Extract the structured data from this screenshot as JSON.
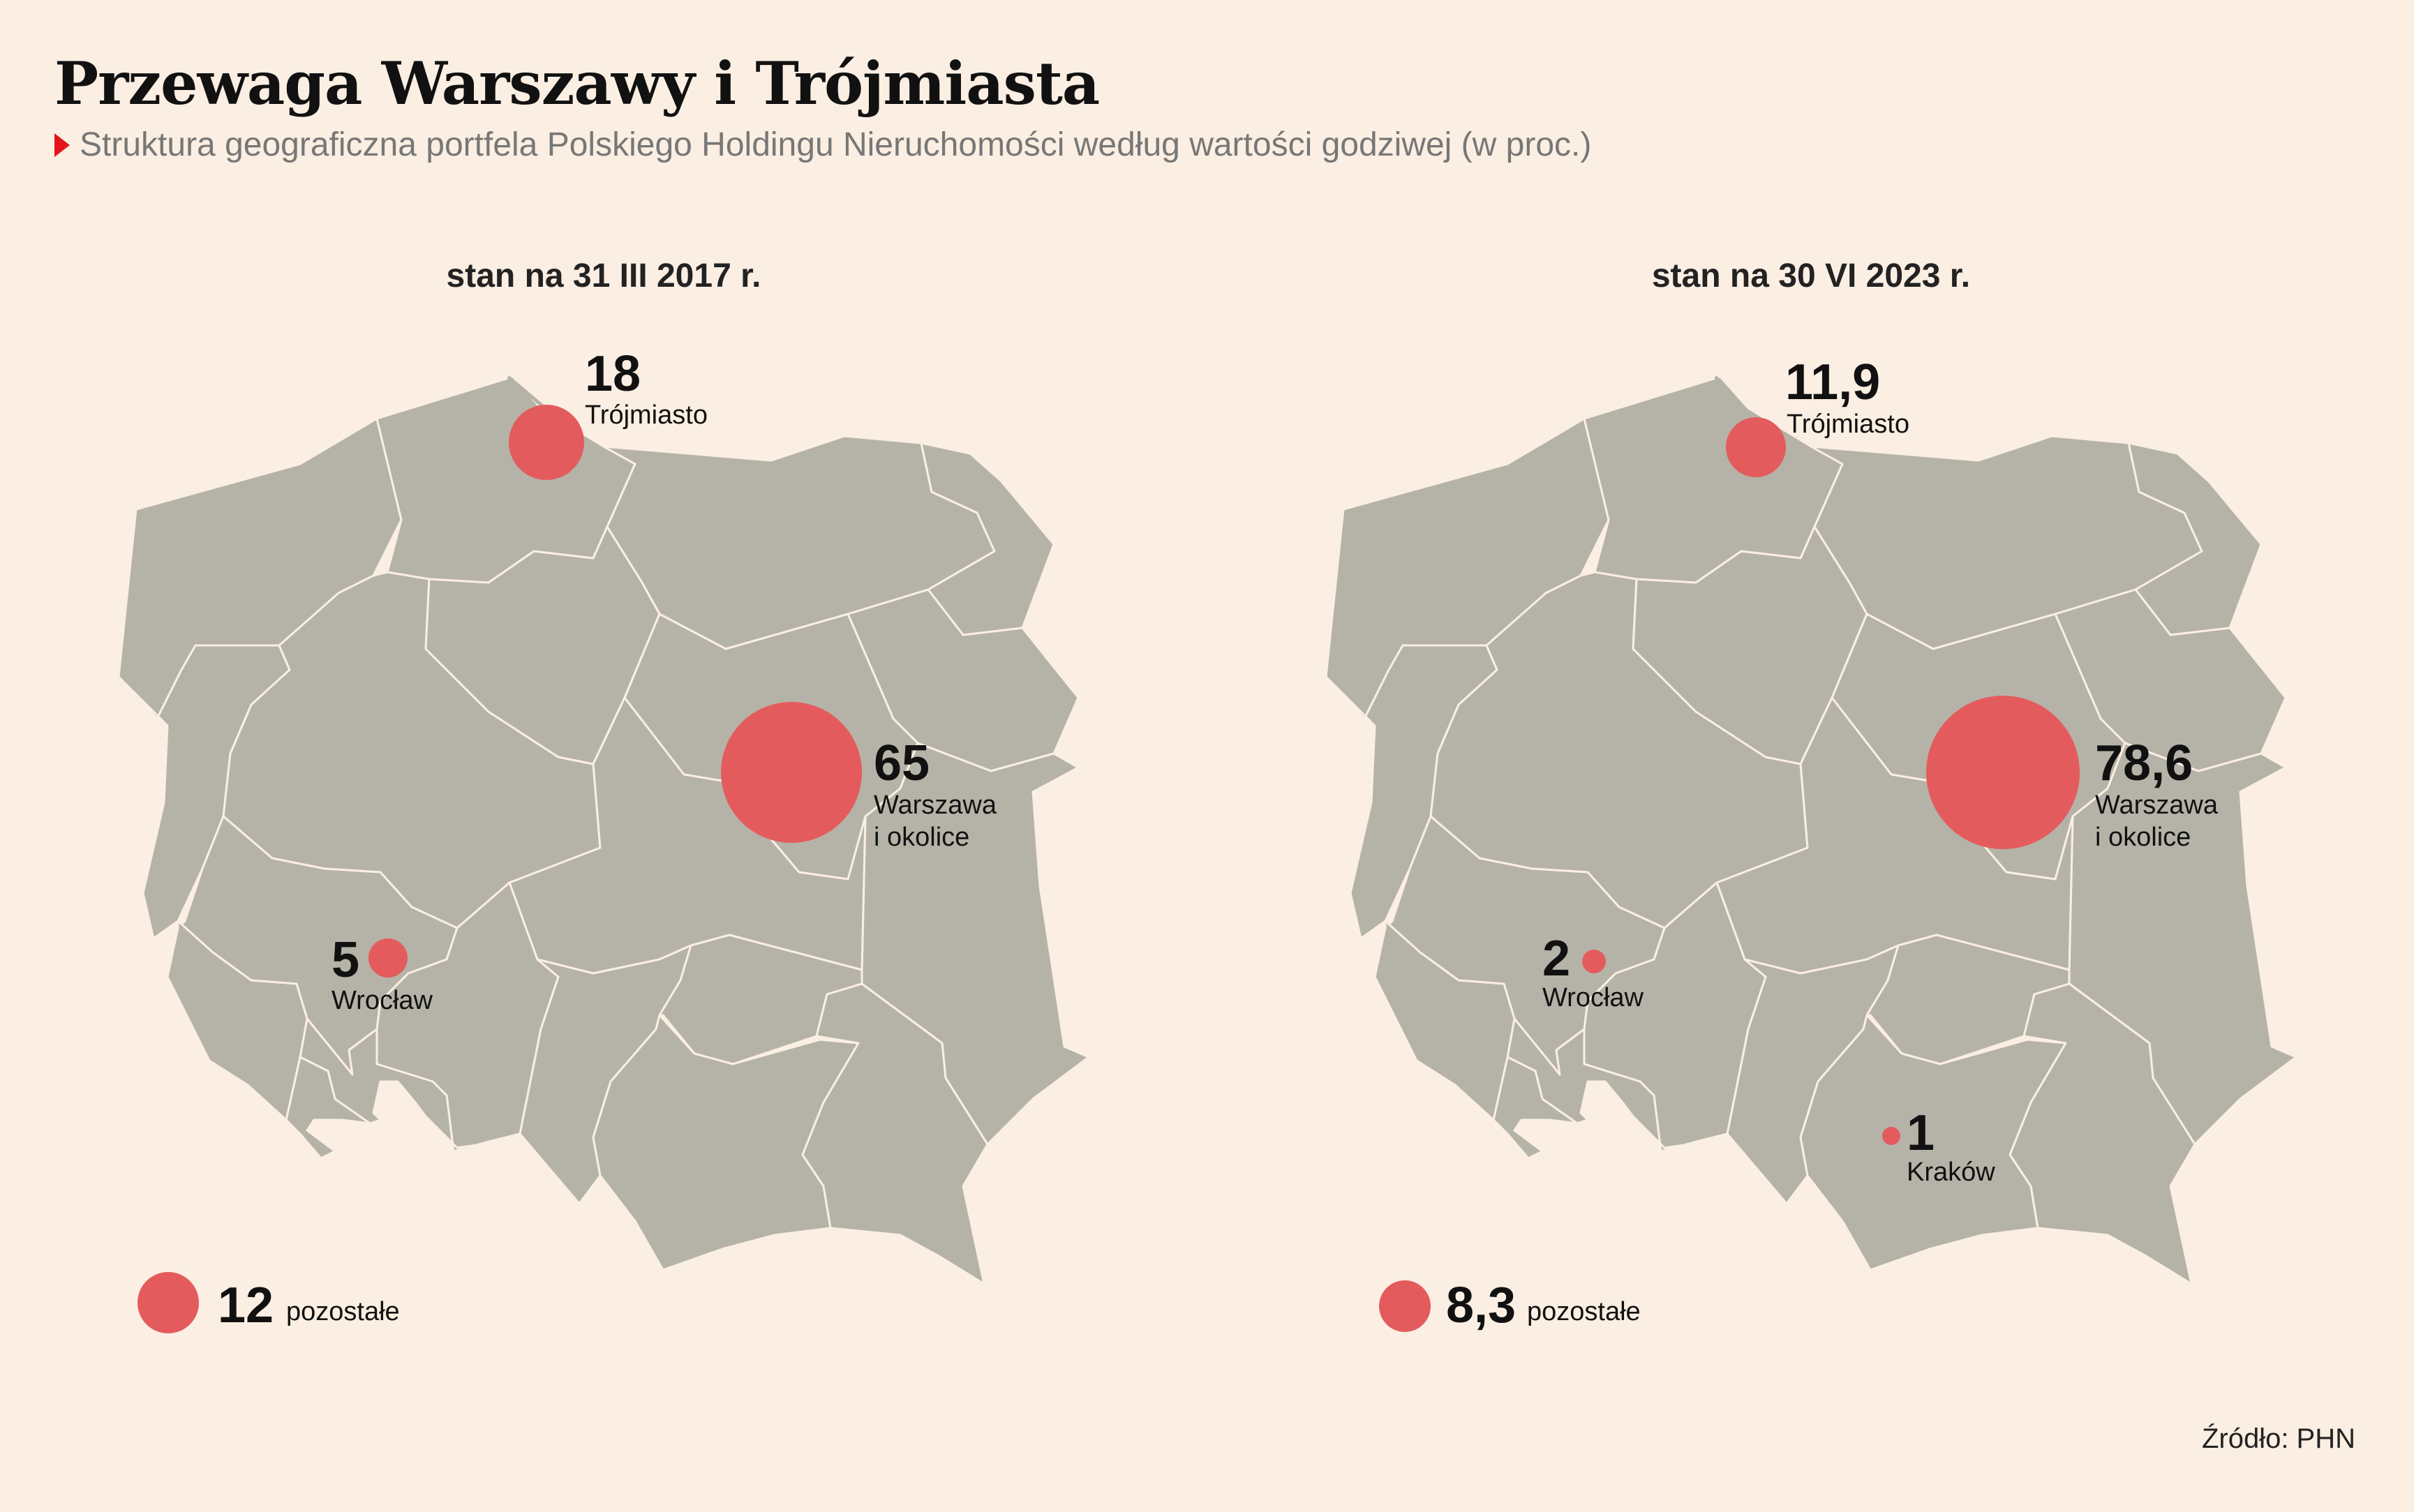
{
  "title": "Przewaga Warszawy i Trójmiasta",
  "subtitle": "Struktura geograficzna portfela Polskiego Holdingu Nieruchomości według wartości godziwej (w proc.)",
  "source": "Źródło: PHN",
  "accent_color": "#e45b5d",
  "map_fill_color": "#b5b3a8",
  "panels": [
    {
      "title": "stan na 31 III 2017 r.",
      "cities": [
        {
          "name": "Trójmiasto",
          "value": "18"
        },
        {
          "name_line1": "Warszawa",
          "name_line2": "i okolice",
          "value": "65"
        },
        {
          "name": "Wrocław",
          "value": "5"
        }
      ],
      "other": {
        "value": "12",
        "label": "pozostałe"
      }
    },
    {
      "title": "stan na 30 VI 2023 r.",
      "cities": [
        {
          "name": "Trójmiasto",
          "value": "11,9"
        },
        {
          "name_line1": "Warszawa",
          "name_line2": "i okolice",
          "value": "78,6"
        },
        {
          "name": "Wrocław",
          "value": "2"
        },
        {
          "name": "Kraków",
          "value": "1"
        }
      ],
      "other": {
        "value": "8,3",
        "label": "pozostałe"
      }
    }
  ]
}
